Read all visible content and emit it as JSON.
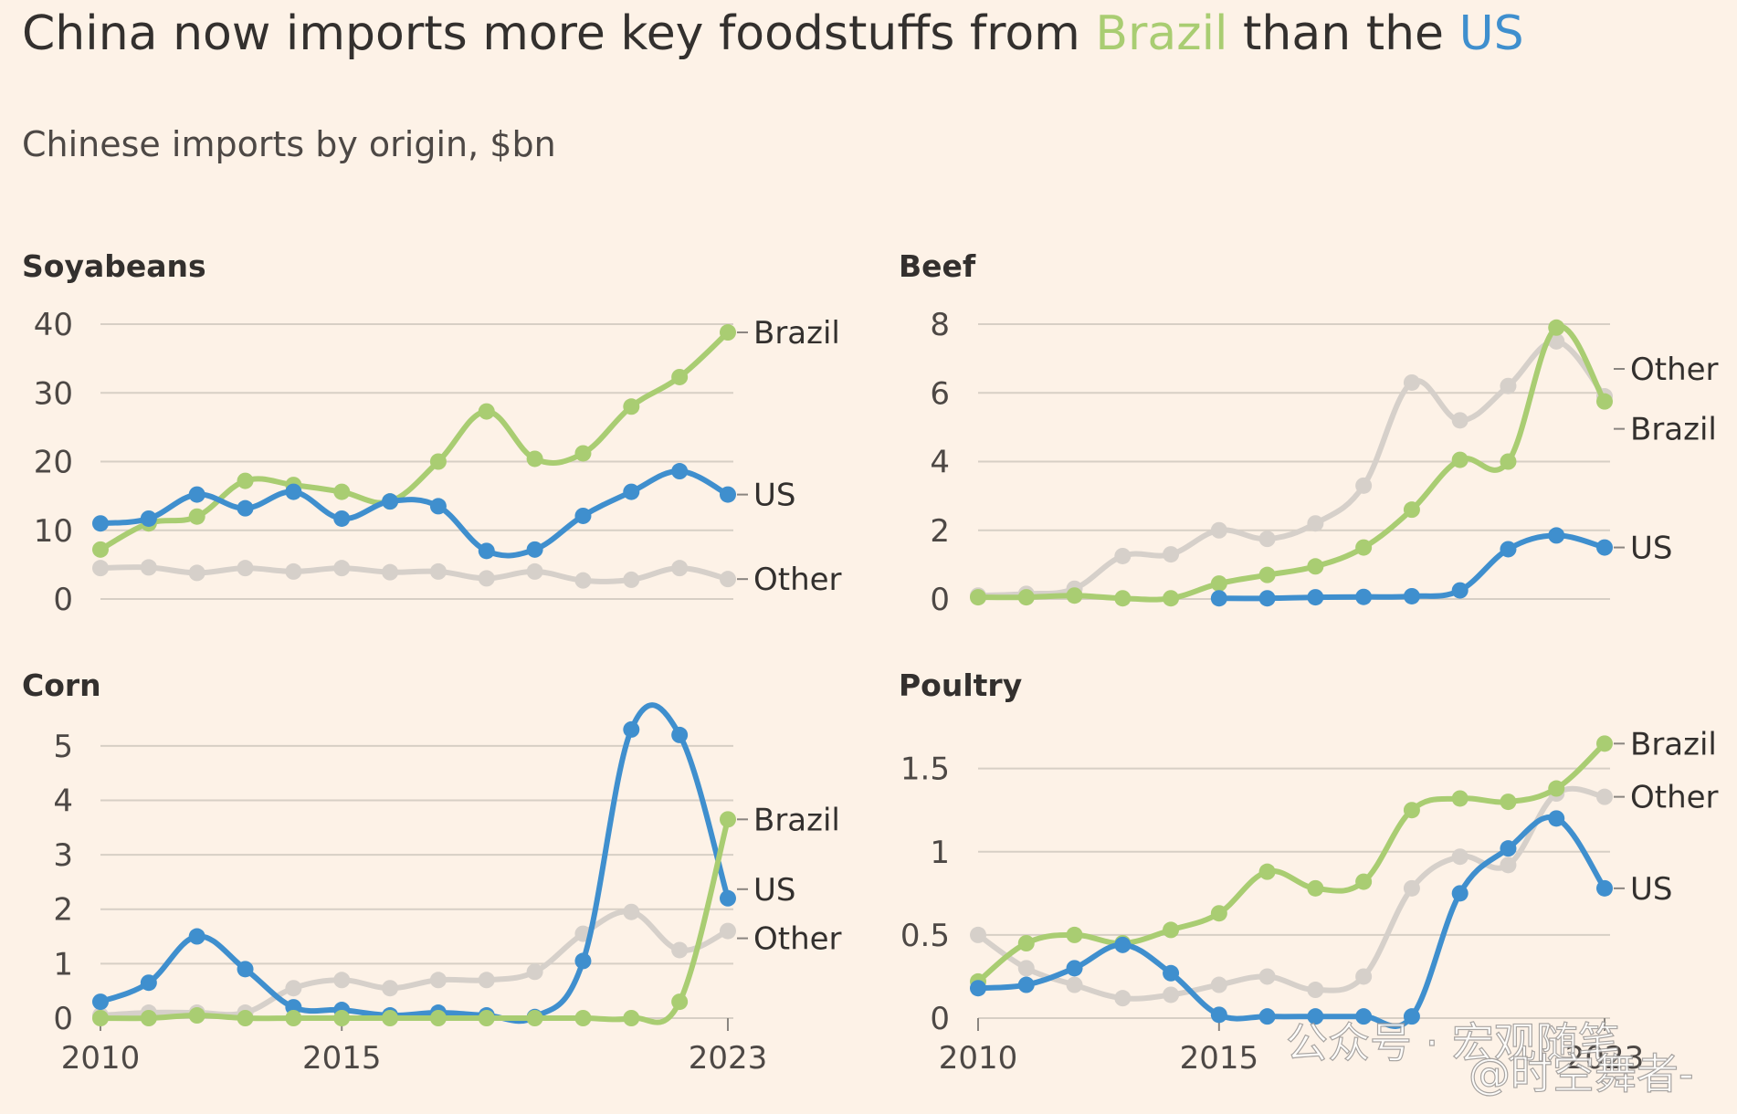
{
  "headline": {
    "prefix": "China now imports more key foodstuffs from ",
    "brazil": "Brazil",
    "middle": " than the ",
    "us": "US"
  },
  "subtitle": "Chinese imports by origin, $bn",
  "colors": {
    "background": "#fdf2e7",
    "brazil": "#a9cd72",
    "us": "#3f8fce",
    "other": "#d6d0ca",
    "grid": "#d7cfc5",
    "text": "#33302e"
  },
  "watermark": {
    "line1": "公众号 · 宏观随笔",
    "line2": "@时空舞者-"
  },
  "chart_data": [
    {
      "type": "line",
      "title": "Soyabeans",
      "x": [
        2010,
        2011,
        2012,
        2013,
        2014,
        2015,
        2016,
        2017,
        2018,
        2019,
        2020,
        2021,
        2022,
        2023
      ],
      "x_ticks": [
        2010,
        2015,
        2023
      ],
      "show_x_ticks": false,
      "ylim": [
        0,
        40
      ],
      "y_ticks": [
        0,
        10,
        20,
        30,
        40
      ],
      "y_tick_labels": [
        "0",
        "10",
        "20",
        "30",
        "40"
      ],
      "series": [
        {
          "name": "Other",
          "label": "Other",
          "color_key": "other",
          "values": [
            4.5,
            4.6,
            3.8,
            4.5,
            4.0,
            4.5,
            3.9,
            4.0,
            3.0,
            4.0,
            2.7,
            2.8,
            4.5,
            2.9
          ]
        },
        {
          "name": "Brazil",
          "label": "Brazil",
          "color_key": "brazil",
          "values": [
            7.2,
            11.0,
            12.0,
            17.2,
            16.6,
            15.6,
            14.2,
            20.0,
            27.3,
            20.4,
            21.2,
            28.0,
            32.3,
            38.8
          ]
        },
        {
          "name": "US",
          "label": "US",
          "color_key": "us",
          "values": [
            11.0,
            11.7,
            15.2,
            13.2,
            15.6,
            11.7,
            14.2,
            13.5,
            7.0,
            7.2,
            12.1,
            15.6,
            18.6,
            15.2
          ]
        }
      ]
    },
    {
      "type": "line",
      "title": "Beef",
      "x": [
        2010,
        2011,
        2012,
        2013,
        2014,
        2015,
        2016,
        2017,
        2018,
        2019,
        2020,
        2021,
        2022,
        2023
      ],
      "x_ticks": [
        2010,
        2015,
        2023
      ],
      "show_x_ticks": false,
      "ylim": [
        0,
        8
      ],
      "y_ticks": [
        0,
        2,
        4,
        6,
        8
      ],
      "y_tick_labels": [
        "0",
        "2",
        "4",
        "6",
        "8"
      ],
      "series": [
        {
          "name": "Other",
          "label": "Other",
          "color_key": "other",
          "values": [
            0.1,
            0.15,
            0.3,
            1.25,
            1.3,
            2.0,
            1.75,
            2.2,
            3.3,
            6.3,
            5.2,
            6.2,
            7.5,
            5.9
          ]
        },
        {
          "name": "Brazil",
          "label": "Brazil",
          "color_key": "brazil",
          "values": [
            0.05,
            0.05,
            0.1,
            0.02,
            0.02,
            0.45,
            0.7,
            0.95,
            1.5,
            2.6,
            4.05,
            4.0,
            7.9,
            5.75
          ]
        },
        {
          "name": "US",
          "label": "US",
          "color_key": "us",
          "values": [
            null,
            null,
            null,
            null,
            null,
            0.02,
            0.02,
            0.05,
            0.06,
            0.08,
            0.25,
            1.45,
            1.85,
            1.5
          ]
        }
      ]
    },
    {
      "type": "line",
      "title": "Corn",
      "x": [
        2010,
        2011,
        2012,
        2013,
        2014,
        2015,
        2016,
        2017,
        2018,
        2019,
        2020,
        2021,
        2022,
        2023
      ],
      "x_ticks": [
        2010,
        2015,
        2023
      ],
      "show_x_ticks": true,
      "ylim": [
        0,
        5.5
      ],
      "y_ticks": [
        0,
        1,
        2,
        3,
        4,
        5
      ],
      "y_tick_labels": [
        "0",
        "1",
        "2",
        "3",
        "4",
        "5"
      ],
      "series": [
        {
          "name": "Other",
          "label": "Other",
          "color_key": "other",
          "values": [
            0.05,
            0.1,
            0.1,
            0.1,
            0.55,
            0.7,
            0.55,
            0.7,
            0.7,
            0.85,
            1.55,
            1.95,
            1.25,
            1.6
          ]
        },
        {
          "name": "US",
          "label": "US",
          "color_key": "us",
          "values": [
            0.3,
            0.65,
            1.5,
            0.9,
            0.2,
            0.15,
            0.05,
            0.1,
            0.05,
            0.02,
            1.05,
            5.3,
            5.2,
            2.2
          ]
        },
        {
          "name": "Brazil",
          "label": "Brazil",
          "color_key": "brazil",
          "values": [
            0.0,
            0.0,
            0.05,
            0.0,
            0.0,
            0.0,
            0.0,
            0.0,
            0.0,
            0.0,
            0.0,
            0.0,
            0.3,
            3.65
          ]
        }
      ]
    },
    {
      "type": "line",
      "title": "Poultry",
      "x": [
        2010,
        2011,
        2012,
        2013,
        2014,
        2015,
        2016,
        2017,
        2018,
        2019,
        2020,
        2021,
        2022,
        2023
      ],
      "x_ticks": [
        2010,
        2015,
        2023
      ],
      "show_x_ticks": true,
      "ylim": [
        0,
        1.8
      ],
      "y_ticks": [
        0,
        0.5,
        1,
        1.5
      ],
      "y_tick_labels": [
        "0",
        "0.5",
        "1",
        "1.5"
      ],
      "series": [
        {
          "name": "Other",
          "label": "Other",
          "color_key": "other",
          "values": [
            0.5,
            0.3,
            0.2,
            0.12,
            0.14,
            0.2,
            0.25,
            0.17,
            0.25,
            0.78,
            0.97,
            0.92,
            1.35,
            1.33
          ]
        },
        {
          "name": "Brazil",
          "label": "Brazil",
          "color_key": "brazil",
          "values": [
            0.22,
            0.45,
            0.5,
            0.45,
            0.53,
            0.63,
            0.88,
            0.78,
            0.82,
            1.25,
            1.32,
            1.3,
            1.38,
            1.65
          ]
        },
        {
          "name": "US",
          "label": "US",
          "color_key": "us",
          "values": [
            0.18,
            0.2,
            0.3,
            0.44,
            0.27,
            0.02,
            0.01,
            0.01,
            0.01,
            0.01,
            0.75,
            1.02,
            1.2,
            0.78
          ]
        }
      ]
    }
  ]
}
